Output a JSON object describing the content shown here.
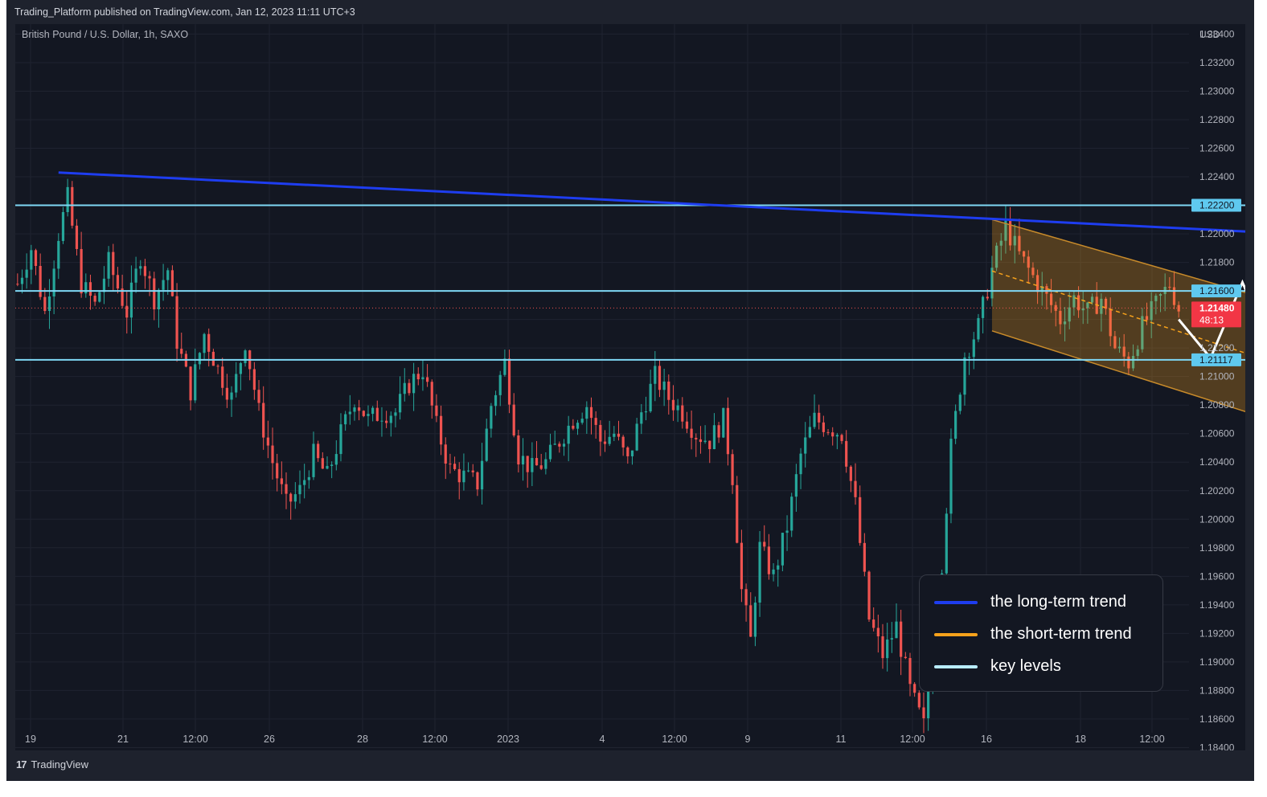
{
  "header": {
    "text": "Trading_Platform published on TradingView.com, Jan 12, 2023 11:11 UTC+3"
  },
  "symbol": "British Pound / U.S. Dollar, 1h, SAXO",
  "footer": {
    "logo": "17",
    "brand": "TradingView"
  },
  "legend": {
    "items": [
      {
        "label": "the long-term trend",
        "color": "#1e3df0"
      },
      {
        "label": "the short-term trend",
        "color": "#f7a21b"
      },
      {
        "label": "key levels",
        "color": "#b8ecff"
      }
    ]
  },
  "chart_data": {
    "type": "candlestick",
    "currency_label": "USD",
    "y_ticks": [
      "1.23400",
      "1.23200",
      "1.23000",
      "1.22800",
      "1.22600",
      "1.22400",
      "1.22200",
      "1.22000",
      "1.21800",
      "1.21600",
      "1.21400",
      "1.21200",
      "1.21000",
      "1.20800",
      "1.20600",
      "1.20400",
      "1.20200",
      "1.20000",
      "1.19800",
      "1.19600",
      "1.19400",
      "1.19200",
      "1.19000",
      "1.18800",
      "1.18600",
      "1.18400"
    ],
    "ylim": [
      1.1838,
      1.2347
    ],
    "x_ticks": [
      "19",
      "21",
      "12:00",
      "26",
      "28",
      "12:00",
      "2023",
      "4",
      "12:00",
      "9",
      "11",
      "12:00",
      "16",
      "18",
      "12:00"
    ],
    "price_path": [
      [
        0,
        1.2165
      ],
      [
        3,
        1.219
      ],
      [
        6,
        1.2145
      ],
      [
        9,
        1.22
      ],
      [
        11,
        1.2225
      ],
      [
        14,
        1.2165
      ],
      [
        17,
        1.215
      ],
      [
        20,
        1.218
      ],
      [
        24,
        1.2145
      ],
      [
        27,
        1.2185
      ],
      [
        30,
        1.2155
      ],
      [
        33,
        1.2175
      ],
      [
        35,
        1.2125
      ],
      [
        38,
        1.209
      ],
      [
        41,
        1.213
      ],
      [
        44,
        1.2105
      ],
      [
        47,
        1.2085
      ],
      [
        50,
        1.2125
      ],
      [
        53,
        1.2075
      ],
      [
        56,
        1.204
      ],
      [
        59,
        1.201
      ],
      [
        62,
        1.202
      ],
      [
        65,
        1.2045
      ],
      [
        68,
        1.203
      ],
      [
        71,
        1.206
      ],
      [
        74,
        1.2085
      ],
      [
        77,
        1.207
      ],
      [
        80,
        1.2075
      ],
      [
        83,
        1.2075
      ],
      [
        86,
        1.2095
      ],
      [
        89,
        1.2105
      ],
      [
        92,
        1.2065
      ],
      [
        95,
        1.2035
      ],
      [
        98,
        1.203
      ],
      [
        101,
        1.2025
      ],
      [
        104,
        1.208
      ],
      [
        107,
        1.211
      ],
      [
        110,
        1.2045
      ],
      [
        113,
        1.2035
      ],
      [
        116,
        1.204
      ],
      [
        119,
        1.2055
      ],
      [
        122,
        1.207
      ],
      [
        125,
        1.208
      ],
      [
        128,
        1.2055
      ],
      [
        131,
        1.206
      ],
      [
        134,
        1.204
      ],
      [
        137,
        1.2075
      ],
      [
        140,
        1.21
      ],
      [
        143,
        1.2085
      ],
      [
        146,
        1.2075
      ],
      [
        149,
        1.206
      ],
      [
        152,
        1.2055
      ],
      [
        155,
        1.207
      ],
      [
        157,
        1.203
      ],
      [
        159,
        1.195
      ],
      [
        161,
        1.1915
      ],
      [
        163,
        1.198
      ],
      [
        166,
        1.196
      ],
      [
        169,
        1.1995
      ],
      [
        172,
        1.2045
      ],
      [
        175,
        1.207
      ],
      [
        178,
        1.2065
      ],
      [
        181,
        1.206
      ],
      [
        184,
        1.201
      ],
      [
        187,
        1.193
      ],
      [
        190,
        1.1905
      ],
      [
        193,
        1.1925
      ],
      [
        196,
        1.188
      ],
      [
        199,
        1.1855
      ],
      [
        202,
        1.193
      ],
      [
        205,
        1.205
      ],
      [
        208,
        1.2115
      ],
      [
        211,
        1.2135
      ],
      [
        214,
        1.2175
      ],
      [
        217,
        1.2205
      ],
      [
        220,
        1.2185
      ],
      [
        223,
        1.217
      ],
      [
        226,
        1.2155
      ],
      [
        229,
        1.214
      ],
      [
        232,
        1.2155
      ],
      [
        235,
        1.2145
      ],
      [
        238,
        1.2155
      ],
      [
        241,
        1.212
      ],
      [
        244,
        1.211
      ],
      [
        247,
        1.2135
      ],
      [
        250,
        1.215
      ],
      [
        253,
        1.2165
      ],
      [
        255,
        1.2148
      ]
    ],
    "key_levels": [
      "1.22200",
      "1.21600",
      "1.21117"
    ],
    "current_price": "1.21480",
    "countdown": "48:13",
    "long_term_trend": {
      "from": {
        "x": 9,
        "y": 1.2243
      },
      "to": {
        "x": 274,
        "y": 1.2201
      }
    },
    "channel": {
      "upper": {
        "from": {
          "x": 214,
          "y": 1.221
        },
        "to": {
          "x": 276,
          "y": 1.2153
        }
      },
      "lower": {
        "from": {
          "x": 214,
          "y": 1.2132
        },
        "to": {
          "x": 276,
          "y": 1.2069
        }
      },
      "mid": {
        "from": {
          "x": 214,
          "y": 1.2174
        },
        "to": {
          "x": 273,
          "y": 1.2113
        }
      }
    },
    "projection": [
      [
        255,
        1.214
      ],
      [
        262,
        1.2113
      ],
      [
        269,
        1.2166
      ],
      [
        276,
        1.2115
      ]
    ]
  }
}
